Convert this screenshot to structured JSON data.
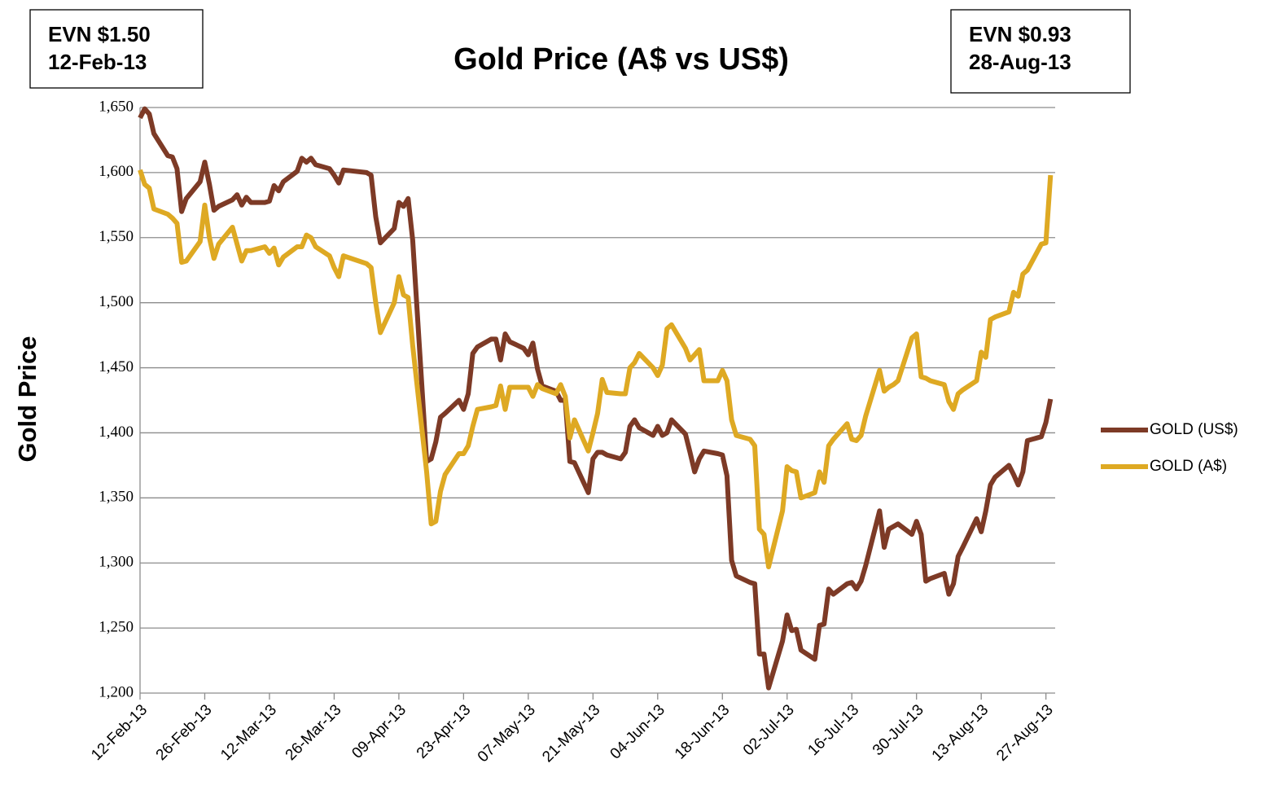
{
  "chart_data": {
    "type": "line",
    "title": "Gold Price (A$ vs US$)",
    "y_label": "Gold Price",
    "annotations": [
      {
        "lines": [
          "EVN $1.50",
          "12-Feb-13"
        ]
      },
      {
        "lines": [
          "EVN $0.93",
          "28-Aug-13"
        ]
      }
    ],
    "x": [
      "12-Feb-13",
      "13-Feb-13",
      "14-Feb-13",
      "15-Feb-13",
      "18-Feb-13",
      "19-Feb-13",
      "20-Feb-13",
      "21-Feb-13",
      "22-Feb-13",
      "25-Feb-13",
      "26-Feb-13",
      "27-Feb-13",
      "28-Feb-13",
      "01-Mar-13",
      "04-Mar-13",
      "05-Mar-13",
      "06-Mar-13",
      "07-Mar-13",
      "08-Mar-13",
      "11-Mar-13",
      "12-Mar-13",
      "13-Mar-13",
      "14-Mar-13",
      "15-Mar-13",
      "18-Mar-13",
      "19-Mar-13",
      "20-Mar-13",
      "21-Mar-13",
      "22-Mar-13",
      "25-Mar-13",
      "26-Mar-13",
      "27-Mar-13",
      "28-Mar-13",
      "02-Apr-13",
      "03-Apr-13",
      "04-Apr-13",
      "05-Apr-13",
      "08-Apr-13",
      "09-Apr-13",
      "10-Apr-13",
      "11-Apr-13",
      "12-Apr-13",
      "15-Apr-13",
      "16-Apr-13",
      "17-Apr-13",
      "18-Apr-13",
      "19-Apr-13",
      "22-Apr-13",
      "23-Apr-13",
      "24-Apr-13",
      "25-Apr-13",
      "26-Apr-13",
      "29-Apr-13",
      "30-Apr-13",
      "01-May-13",
      "02-May-13",
      "03-May-13",
      "06-May-13",
      "07-May-13",
      "08-May-13",
      "09-May-13",
      "10-May-13",
      "13-May-13",
      "14-May-13",
      "15-May-13",
      "16-May-13",
      "17-May-13",
      "20-May-13",
      "21-May-13",
      "22-May-13",
      "23-May-13",
      "24-May-13",
      "27-May-13",
      "28-May-13",
      "29-May-13",
      "30-May-13",
      "31-May-13",
      "03-Jun-13",
      "04-Jun-13",
      "05-Jun-13",
      "06-Jun-13",
      "07-Jun-13",
      "10-Jun-13",
      "11-Jun-13",
      "12-Jun-13",
      "13-Jun-13",
      "14-Jun-13",
      "17-Jun-13",
      "18-Jun-13",
      "19-Jun-13",
      "20-Jun-13",
      "21-Jun-13",
      "24-Jun-13",
      "25-Jun-13",
      "26-Jun-13",
      "27-Jun-13",
      "28-Jun-13",
      "01-Jul-13",
      "02-Jul-13",
      "03-Jul-13",
      "04-Jul-13",
      "05-Jul-13",
      "08-Jul-13",
      "09-Jul-13",
      "10-Jul-13",
      "11-Jul-13",
      "12-Jul-13",
      "15-Jul-13",
      "16-Jul-13",
      "17-Jul-13",
      "18-Jul-13",
      "19-Jul-13",
      "22-Jul-13",
      "23-Jul-13",
      "24-Jul-13",
      "25-Jul-13",
      "26-Jul-13",
      "29-Jul-13",
      "30-Jul-13",
      "31-Jul-13",
      "01-Aug-13",
      "02-Aug-13",
      "05-Aug-13",
      "06-Aug-13",
      "07-Aug-13",
      "08-Aug-13",
      "09-Aug-13",
      "12-Aug-13",
      "13-Aug-13",
      "14-Aug-13",
      "15-Aug-13",
      "16-Aug-13",
      "19-Aug-13",
      "20-Aug-13",
      "21-Aug-13",
      "22-Aug-13",
      "23-Aug-13",
      "26-Aug-13",
      "27-Aug-13",
      "28-Aug-13"
    ],
    "series": [
      {
        "name": "GOLD (US$)",
        "color": "#7d3a26",
        "values": [
          1642,
          1649,
          1645,
          1630,
          1613,
          1612,
          1603,
          1570,
          1580,
          1593,
          1608,
          1591,
          1571,
          1574,
          1579,
          1583,
          1575,
          1581,
          1577,
          1577,
          1578,
          1590,
          1586,
          1593,
          1601,
          1611,
          1608,
          1611,
          1606,
          1603,
          1598,
          1592,
          1602,
          1600,
          1598,
          1566,
          1546,
          1557,
          1577,
          1574,
          1580,
          1548,
          1378,
          1380,
          1393,
          1412,
          1415,
          1425,
          1418,
          1430,
          1461,
          1466,
          1472,
          1472,
          1456,
          1476,
          1470,
          1465,
          1460,
          1469,
          1449,
          1436,
          1432,
          1425,
          1425,
          1378,
          1377,
          1354,
          1380,
          1385,
          1385,
          1383,
          1380,
          1385,
          1405,
          1410,
          1404,
          1398,
          1405,
          1398,
          1400,
          1410,
          1399,
          1385,
          1370,
          1380,
          1386,
          1384,
          1383,
          1367,
          1302,
          1290,
          1285,
          1284,
          1230,
          1230,
          1204,
          1240,
          1260,
          1248,
          1249,
          1233,
          1226,
          1252,
          1253,
          1280,
          1276,
          1284,
          1285,
          1280,
          1286,
          1298,
          1340,
          1312,
          1326,
          1328,
          1330,
          1322,
          1332,
          1322,
          1286,
          1288,
          1292,
          1276,
          1284,
          1305,
          1312,
          1334,
          1324,
          1340,
          1360,
          1366,
          1375,
          1368,
          1360,
          1370,
          1394,
          1397,
          1408,
          1426
        ]
      },
      {
        "name": "GOLD (A$)",
        "color": "#dea923",
        "values": [
          1602,
          1591,
          1588,
          1572,
          1568,
          1565,
          1561,
          1531,
          1532,
          1547,
          1575,
          1550,
          1534,
          1545,
          1558,
          1545,
          1532,
          1540,
          1540,
          1543,
          1538,
          1542,
          1529,
          1535,
          1543,
          1543,
          1552,
          1550,
          1543,
          1536,
          1527,
          1520,
          1536,
          1530,
          1527,
          1500,
          1477,
          1500,
          1520,
          1506,
          1504,
          1467,
          1370,
          1330,
          1332,
          1355,
          1368,
          1384,
          1384,
          1390,
          1405,
          1418,
          1420,
          1421,
          1436,
          1418,
          1435,
          1435,
          1435,
          1428,
          1437,
          1434,
          1430,
          1437,
          1428,
          1396,
          1410,
          1386,
          1400,
          1415,
          1441,
          1431,
          1430,
          1430,
          1450,
          1454,
          1461,
          1450,
          1444,
          1452,
          1480,
          1483,
          1465,
          1456,
          1460,
          1464,
          1440,
          1440,
          1448,
          1440,
          1410,
          1398,
          1395,
          1390,
          1326,
          1322,
          1297,
          1340,
          1374,
          1371,
          1370,
          1350,
          1354,
          1370,
          1362,
          1390,
          1395,
          1407,
          1395,
          1394,
          1398,
          1413,
          1448,
          1432,
          1435,
          1437,
          1440,
          1473,
          1476,
          1443,
          1442,
          1440,
          1437,
          1424,
          1418,
          1430,
          1433,
          1440,
          1462,
          1458,
          1487,
          1489,
          1493,
          1508,
          1505,
          1522,
          1525,
          1545,
          1546,
          1598
        ]
      }
    ],
    "xlim": [
      "12-Feb-13",
      "29-Aug-13"
    ],
    "xticks": [
      "12-Feb-13",
      "26-Feb-13",
      "12-Mar-13",
      "26-Mar-13",
      "09-Apr-13",
      "23-Apr-13",
      "07-May-13",
      "21-May-13",
      "04-Jun-13",
      "18-Jun-13",
      "02-Jul-13",
      "16-Jul-13",
      "30-Jul-13",
      "13-Aug-13",
      "27-Aug-13"
    ],
    "ylim": [
      1200,
      1650
    ],
    "yticks": [
      {
        "value": 1200,
        "label": "1,200"
      },
      {
        "value": 1250,
        "label": "1,250"
      },
      {
        "value": 1300,
        "label": "1,300"
      },
      {
        "value": 1350,
        "label": "1,350"
      },
      {
        "value": 1400,
        "label": "1,400"
      },
      {
        "value": 1450,
        "label": "1,450"
      },
      {
        "value": 1500,
        "label": "1,500"
      },
      {
        "value": 1550,
        "label": "1,550"
      },
      {
        "value": 1600,
        "label": "1,600"
      },
      {
        "value": 1650,
        "label": "1,650"
      }
    ],
    "grid": true,
    "legend": "right"
  }
}
